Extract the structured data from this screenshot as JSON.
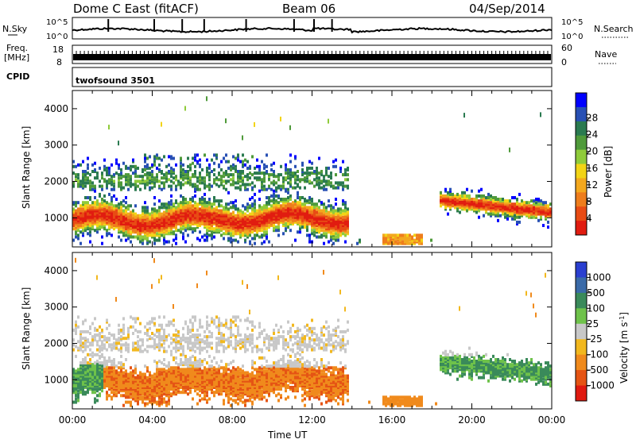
{
  "header": {
    "station": "Dome C East (fitACF)",
    "beam": "Beam 06",
    "date": "04/Sep/2014"
  },
  "panels": {
    "nsky_label": "N.Sky",
    "nsky_ticks": [
      "10^5",
      "10^0"
    ],
    "nsearch_label": "N.Search",
    "nsearch_ticks": [
      "10^5",
      "10^0"
    ],
    "freq_label": "Freq.",
    "freq_unit": "[MHz]",
    "freq_ticks": [
      "18",
      "8"
    ],
    "nave_label": "Nave",
    "nave_ticks": [
      "60",
      "0"
    ],
    "cpid_label": "CPID",
    "cpid_value": "twofsound 3501"
  },
  "chart_data": [
    {
      "type": "heatmap",
      "name": "power",
      "ylabel": "Slant Range [km]",
      "xlabel": "",
      "yticks": [
        "1000",
        "2000",
        "3000",
        "4000"
      ],
      "ylim": [
        200,
        4500
      ],
      "x": [
        "00:00",
        "04:00",
        "08:00",
        "12:00",
        "16:00",
        "20:00",
        "00:00"
      ],
      "xlim": [
        0,
        24
      ],
      "colorbar": {
        "label": "Power [dB]",
        "ticks": [
          "4",
          "8",
          "12",
          "16",
          "20",
          "24",
          "28"
        ],
        "colors": [
          "#0000ff",
          "#2850b4",
          "#2a7a50",
          "#4f9a3a",
          "#8fcb3a",
          "#f2d416",
          "#f3a81e",
          "#ee7d1c",
          "#e84b14",
          "#e11c10"
        ]
      },
      "grid": false
    },
    {
      "type": "heatmap",
      "name": "velocity",
      "ylabel": "Slant Range [km]",
      "xlabel": "Time UT",
      "yticks": [
        "1000",
        "2000",
        "3000",
        "4000"
      ],
      "ylim": [
        200,
        4500
      ],
      "x": [
        "00:00",
        "04:00",
        "08:00",
        "12:00",
        "16:00",
        "20:00",
        "00:00"
      ],
      "xlim": [
        0,
        24
      ],
      "colorbar": {
        "label": "Velocity [m s^-1]",
        "ticks": [
          "1000",
          "500",
          "100",
          "25",
          "-25",
          "-100",
          "-500",
          "-1000"
        ],
        "colors": [
          "#2a3fd0",
          "#3a6aa8",
          "#3a8a5a",
          "#6ec24a",
          "#c8c8c8",
          "#f2b81e",
          "#f08a1c",
          "#e55414",
          "#e01a10"
        ]
      },
      "grid": false
    }
  ]
}
